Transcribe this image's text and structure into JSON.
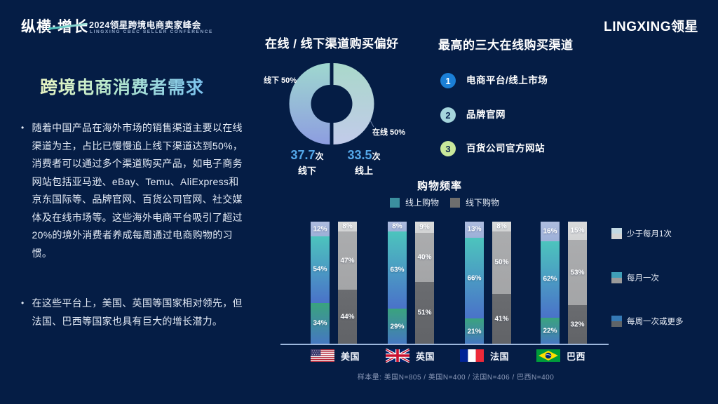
{
  "header": {
    "brand_logo": "纵横·增长",
    "event_title": "2024领星跨境电商卖家峰会",
    "event_subtitle": "LINGXING CBEC SELLER CONFERENCE",
    "company_logo": "LINGXING领星"
  },
  "left_panel": {
    "title": "跨境电商消费者需求",
    "bullet_glyph": "•",
    "bullets": [
      "随着中国产品在海外市场的销售渠道主要以在线渠道为主，占比已慢慢追上线下渠道达到50%，消费者可以通过多个渠道购买产品，如电子商务网站包括亚马逊、eBay、Temu、AliExpress和京东国际等、品牌官网、百货公司官网、社交媒体及在线市场等。这些海外电商平台吸引了超过20%的境外消费者养成每周通过电商购物的习惯。",
      "在这些平台上，美国、英国等国家相对领先，但法国、巴西等国家也具有巨大的增长潜力。"
    ]
  },
  "donut": {
    "title": "在线 / 线下渠道购买偏好",
    "offline_label": "线下 50%",
    "online_label": "在线 50%",
    "stats": [
      {
        "value": "37.7",
        "unit": "次",
        "label": "线下"
      },
      {
        "value": "33.5",
        "unit": "次",
        "label": "线上"
      }
    ]
  },
  "channels": {
    "title": "最高的三大在线购买渠道",
    "items": [
      {
        "rank": "1",
        "label": "电商平台/线上市场",
        "circle_color": "#1b7fd6",
        "number_color": "#ffffff"
      },
      {
        "rank": "2",
        "label": "品牌官网",
        "circle_color": "#a5d5dc",
        "number_color": "#0a2550"
      },
      {
        "rank": "3",
        "label": "百货公司官方网站",
        "circle_color": "#c9e89b",
        "number_color": "#0a2550"
      }
    ]
  },
  "frequency": {
    "title": "购物频率",
    "legend": [
      {
        "label": "线上购物",
        "color": "#3b8f9f"
      },
      {
        "label": "线下购物",
        "color": "#6e6e6e"
      }
    ],
    "freq_legend": [
      {
        "label": "少于每月1次",
        "top_color": "#c3d9e3",
        "bottom_color": "#d4d4d4"
      },
      {
        "label": "每月一次",
        "top_color": "#3f9fb8",
        "bottom_color": "#9a9a9a"
      },
      {
        "label": "每周一次或更多",
        "top_color": "#3579b5",
        "bottom_color": "#5f6468"
      }
    ],
    "colors": {
      "online": [
        [
          "#aebcdf",
          "#9db0d8"
        ],
        [
          "#4cc4bd",
          "#4a72c9"
        ],
        [
          "#3aa37e",
          "#4577c2"
        ]
      ],
      "offline": [
        [
          "#dadbdc",
          "#d2d3d4"
        ],
        [
          "#abacae",
          "#a4a5a7"
        ],
        [
          "#6a6c70",
          "#616367"
        ]
      ]
    },
    "countries": [
      {
        "key": "us",
        "name": "美国",
        "online": [
          12,
          54,
          34
        ],
        "offline": [
          8,
          47,
          44
        ]
      },
      {
        "key": "uk",
        "name": "英国",
        "online": [
          8,
          63,
          29
        ],
        "offline": [
          9,
          40,
          51
        ]
      },
      {
        "key": "fr",
        "name": "法国",
        "online": [
          13,
          66,
          21
        ],
        "offline": [
          8,
          50,
          41
        ]
      },
      {
        "key": "br",
        "name": "巴西",
        "online": [
          16,
          62,
          22
        ],
        "offline": [
          15,
          53,
          32
        ]
      }
    ],
    "note": "样本量: 美国N=805 / 英国N=400 / 法国N=406 / 巴西N=400"
  },
  "chart_data": [
    {
      "type": "pie",
      "variant": "donut-split-halves",
      "title": "在线 / 线下渠道购买偏好",
      "slices": [
        {
          "label": "线下",
          "value": 50
        },
        {
          "label": "在线",
          "value": 50
        }
      ],
      "annotations": [
        "37.7次 线下",
        "33.5次 线上"
      ]
    },
    {
      "type": "bar",
      "variant": "100%-stacked paired columns (online vs offline per country)",
      "title": "购物频率",
      "categories": [
        "美国",
        "英国",
        "法国",
        "巴西"
      ],
      "series": [
        {
          "name": "线上购物 少于每月1次",
          "values": [
            12,
            8,
            13,
            16
          ]
        },
        {
          "name": "线上购物 每月一次",
          "values": [
            54,
            63,
            66,
            62
          ]
        },
        {
          "name": "线上购物 每周一次或更多",
          "values": [
            34,
            29,
            21,
            22
          ]
        },
        {
          "name": "线下购物 少于每月1次",
          "values": [
            8,
            9,
            8,
            15
          ]
        },
        {
          "name": "线下购物 每月一次",
          "values": [
            47,
            40,
            50,
            53
          ]
        },
        {
          "name": "线下购物 每周一次或更多",
          "values": [
            44,
            51,
            41,
            32
          ]
        }
      ],
      "ylim": [
        0,
        100
      ],
      "grid": false,
      "legend_position": "top (series type) and right (frequency levels)",
      "note": "样本量: 美国N=805 / 英国N=400 / 法国N=406 / 巴西N=400"
    }
  ]
}
